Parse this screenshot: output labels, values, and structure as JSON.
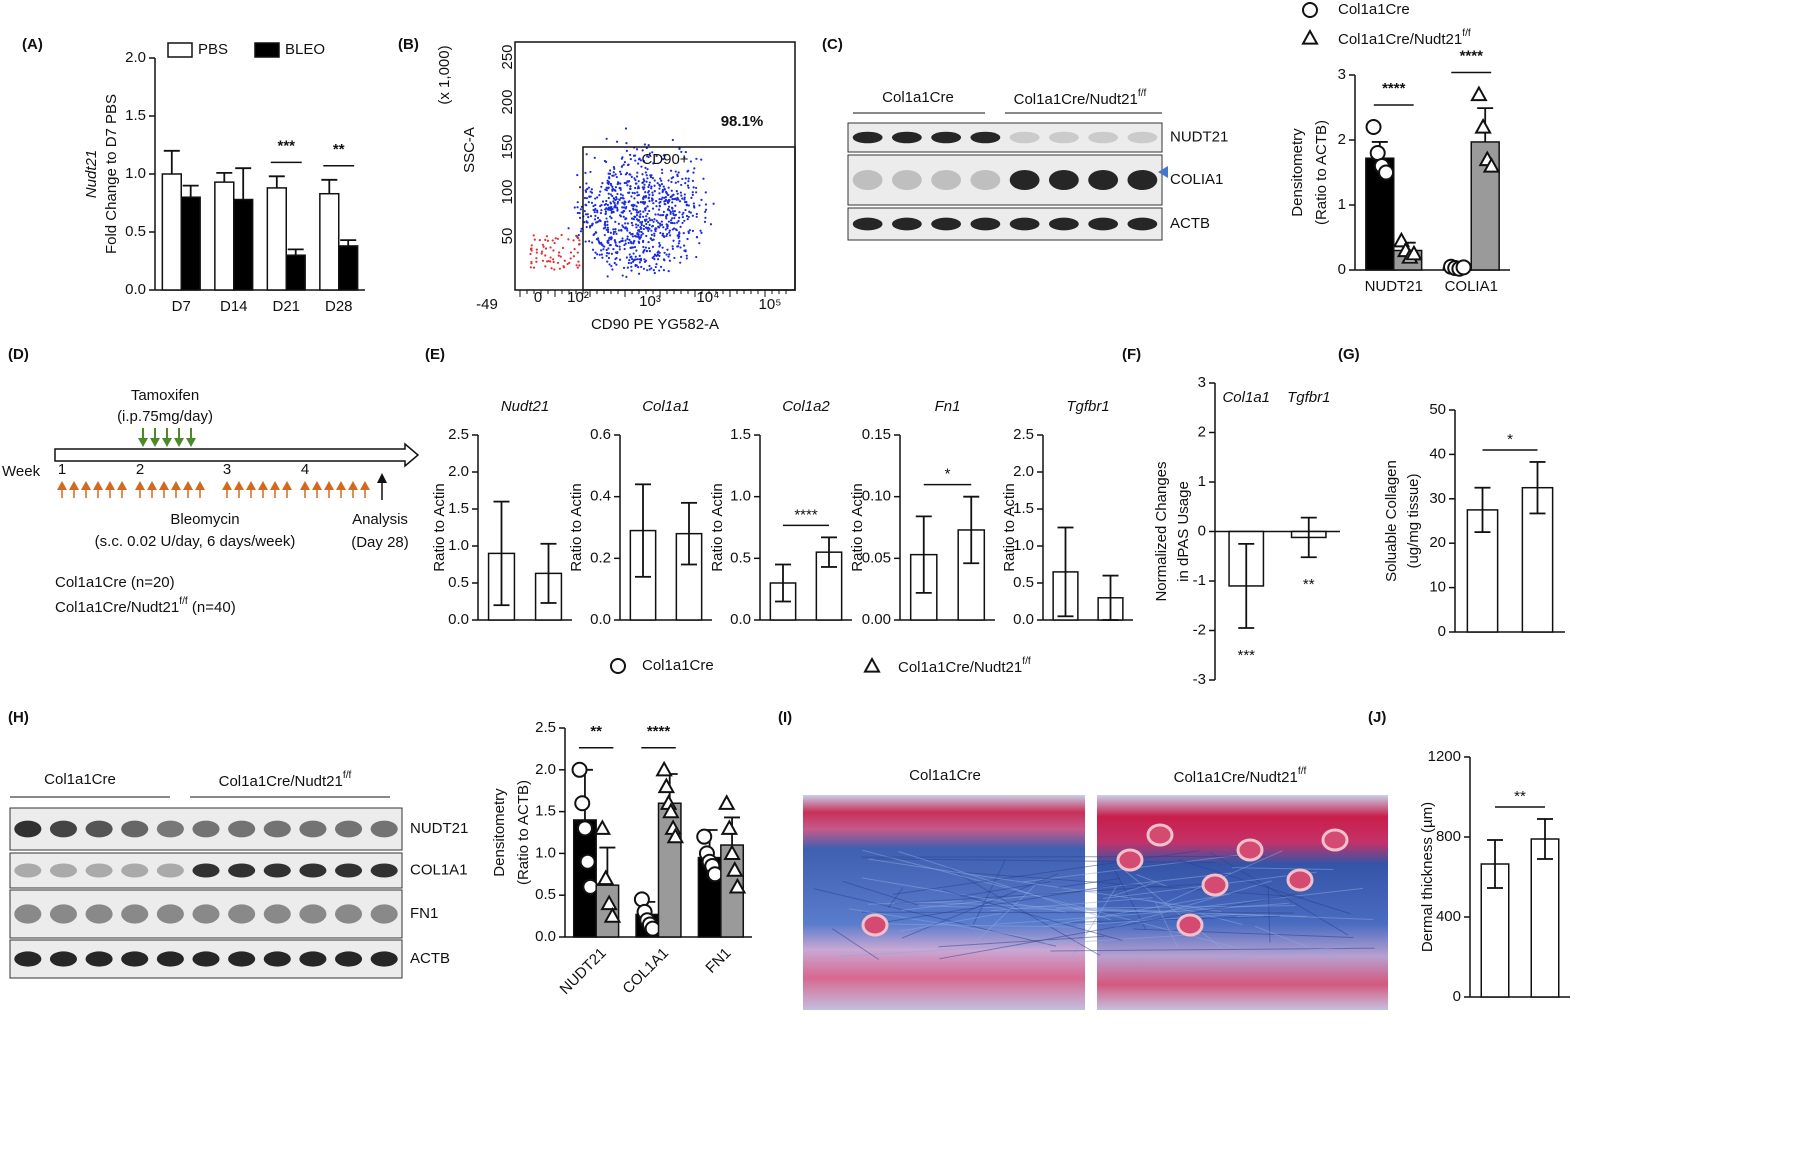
{
  "chart_data": [
    {
      "type": "bar",
      "ylabel": [
        "Nudt21",
        "Fold Change to D7 PBS"
      ],
      "categories": [
        "D7",
        "D14",
        "D21",
        "D28"
      ],
      "series": [
        {
          "name": "PBS",
          "color": "#ffffff",
          "values": [
            1.0,
            0.93,
            0.88,
            0.83
          ],
          "errors": [
            0.2,
            0.08,
            0.1,
            0.12
          ]
        },
        {
          "name": "BLEO",
          "color": "#000000",
          "values": [
            0.8,
            0.78,
            0.3,
            0.38
          ],
          "errors": [
            0.1,
            0.27,
            0.05,
            0.05
          ]
        }
      ],
      "significance": [
        null,
        null,
        "***",
        "**"
      ],
      "error_style": "up",
      "ylim": [
        0,
        2
      ],
      "yticks": [
        {
          "value": 0,
          "label": "0.0"
        },
        {
          "value": 0.5,
          "label": "0.5"
        },
        {
          "value": 1,
          "label": "1.0"
        },
        {
          "value": 1.5,
          "label": "1.5"
        },
        {
          "value": 2,
          "label": "2.0"
        }
      ]
    },
    {
      "type": "bar",
      "ylabel": [
        "Densitometry",
        "(Ratio to ACTB)"
      ],
      "categories": [
        "NUDT21",
        "COLIA1"
      ],
      "series": [
        {
          "name": "Col1a1Cre",
          "marker": "circle",
          "color": "#000000",
          "values": [
            1.72,
            0.03
          ],
          "errors": [
            0.25,
            0.02
          ],
          "points": [
            [
              2.2,
              1.8,
              1.6,
              1.5
            ],
            [
              0.05,
              0.03,
              0.02,
              0.04
            ]
          ]
        },
        {
          "name": "Col1a1Cre/Nudt21",
          "name_sup": "f/f",
          "marker": "triangle",
          "color": "#9a9a9a",
          "values": [
            0.3,
            1.97
          ],
          "errors": [
            0.12,
            0.52
          ],
          "points": [
            [
              0.45,
              0.3,
              0.2,
              0.25
            ],
            [
              2.7,
              2.2,
              1.7,
              1.6
            ]
          ]
        }
      ],
      "significance": [
        "****",
        "****"
      ],
      "error_style": "up",
      "ylim": [
        0,
        3
      ],
      "yticks": [
        0,
        1,
        2,
        3
      ]
    },
    {
      "type": "bar",
      "title": "Nudt21",
      "ylabel": [
        "Ratio to Actin"
      ],
      "categories": [
        null,
        null
      ],
      "color": "#ffffff",
      "values": [
        0.9,
        0.63
      ],
      "errors": [
        0.7,
        0.4
      ],
      "significance": null,
      "error_style": "both",
      "ylim": [
        0,
        2.5
      ],
      "yticks": [
        {
          "value": 0,
          "label": "0.0"
        },
        {
          "value": 0.5,
          "label": "0.5"
        },
        {
          "value": 1,
          "label": "1.0"
        },
        {
          "value": 1.5,
          "label": "1.5"
        },
        {
          "value": 2,
          "label": "2.0"
        },
        {
          "value": 2.5,
          "label": "2.5"
        }
      ]
    },
    {
      "type": "bar",
      "title": "Col1a1",
      "ylabel": [
        "Ratio to Actin"
      ],
      "categories": [
        null,
        null
      ],
      "color": "#ffffff",
      "values": [
        0.29,
        0.28
      ],
      "errors": [
        0.15,
        0.1
      ],
      "significance": null,
      "error_style": "both",
      "ylim": [
        0,
        0.6
      ],
      "yticks": [
        {
          "value": 0,
          "label": "0.0"
        },
        0.2,
        0.4,
        0.6
      ]
    },
    {
      "type": "bar",
      "title": "Col1a2",
      "ylabel": [
        "Ratio to Actin"
      ],
      "categories": [
        null,
        null
      ],
      "color": "#ffffff",
      "values": [
        0.3,
        0.55
      ],
      "errors": [
        0.15,
        0.12
      ],
      "significance": "****",
      "error_style": "both",
      "ylim": [
        0,
        1.5
      ],
      "yticks": [
        {
          "value": 0,
          "label": "0.0"
        },
        0.5,
        {
          "value": 1,
          "label": "1.0"
        },
        1.5
      ]
    },
    {
      "type": "bar",
      "title": "Fn1",
      "ylabel": [
        "Ratio to Actin"
      ],
      "categories": [
        null,
        null
      ],
      "color": "#ffffff",
      "values": [
        0.053,
        0.073
      ],
      "errors": [
        0.031,
        0.027
      ],
      "significance": "*",
      "error_style": "both",
      "ylim": [
        0,
        0.15
      ],
      "yticks": [
        {
          "value": 0,
          "label": "0.00"
        },
        0.05,
        {
          "value": 0.1,
          "label": "0.10"
        },
        0.15
      ]
    },
    {
      "type": "bar",
      "title": "Tgfbr1",
      "ylabel": [
        "Ratio to Actin"
      ],
      "categories": [
        null,
        null
      ],
      "color": "#ffffff",
      "values": [
        0.65,
        0.3
      ],
      "errors": [
        0.6,
        0.3
      ],
      "significance": null,
      "error_style": "both",
      "ylim": [
        0,
        2.5
      ],
      "yticks": [
        {
          "value": 0,
          "label": "0.0"
        },
        {
          "value": 0.5,
          "label": "0.5"
        },
        {
          "value": 1,
          "label": "1.0"
        },
        {
          "value": 1.5,
          "label": "1.5"
        },
        {
          "value": 2,
          "label": "2.0"
        },
        {
          "value": 2.5,
          "label": "2.5"
        }
      ]
    },
    {
      "type": "bar",
      "ylabel": [
        "Normalized Changes",
        "in dPAS Usage"
      ],
      "categories": [
        "Col1a1",
        "Tgfbr1"
      ],
      "color": "#ffffff",
      "values": [
        -1.1,
        -0.12
      ],
      "errors": [
        0.85,
        0.4
      ],
      "significance": [
        "***",
        "**"
      ],
      "error_style": "both",
      "ylim": [
        -3,
        3
      ],
      "yticks": [
        -3,
        -2,
        -1,
        0,
        1,
        2,
        3
      ]
    },
    {
      "type": "bar",
      "ylabel": [
        "Soluable Collagen",
        "(ug/mg tissue)"
      ],
      "categories": [
        null,
        null
      ],
      "color": "#ffffff",
      "values": [
        27.5,
        32.5
      ],
      "errors": [
        5,
        5.8
      ],
      "significance": "*",
      "error_style": "both",
      "ylim": [
        0,
        50
      ],
      "yticks": [
        0,
        10,
        20,
        30,
        40,
        50
      ]
    },
    {
      "type": "bar",
      "ylabel": [
        "Densitometry",
        "(Ratio to ACTB)"
      ],
      "categories": [
        "NUDT21",
        "COL1A1",
        "FN1"
      ],
      "series": [
        {
          "marker": "circle",
          "color": "#000000",
          "values": [
            1.4,
            0.27,
            0.95
          ],
          "errors": [
            0.6,
            0.15,
            0.33
          ],
          "points": [
            [
              2.0,
              1.6,
              1.3,
              0.9,
              0.6
            ],
            [
              0.45,
              0.3,
              0.2,
              0.15,
              0.1
            ],
            [
              1.2,
              1.0,
              0.9,
              0.85,
              0.75
            ]
          ]
        },
        {
          "marker": "triangle",
          "color": "#9a9a9a",
          "values": [
            0.62,
            1.6,
            1.1
          ],
          "errors": [
            0.45,
            0.35,
            0.33
          ],
          "points": [
            [
              1.3,
              0.7,
              0.4,
              0.25
            ],
            [
              2.0,
              1.8,
              1.6,
              1.5,
              1.3,
              1.2
            ],
            [
              1.6,
              1.3,
              1.0,
              0.8,
              0.6
            ]
          ]
        }
      ],
      "significance": [
        "**",
        "****",
        null
      ],
      "error_style": "up",
      "ylim": [
        0,
        2.5
      ],
      "yticks": [
        {
          "value": 0,
          "label": "0.0"
        },
        {
          "value": 0.5,
          "label": "0.5"
        },
        {
          "value": 1,
          "label": "1.0"
        },
        {
          "value": 1.5,
          "label": "1.5"
        },
        {
          "value": 2,
          "label": "2.0"
        },
        {
          "value": 2.5,
          "label": "2.5"
        }
      ]
    },
    {
      "type": "bar",
      "ylabel": [
        "Dermal thickness (µm)"
      ],
      "categories": [
        null,
        null
      ],
      "color": "#ffffff",
      "values": [
        665,
        790
      ],
      "errors": [
        120,
        100
      ],
      "significance": "**",
      "error_style": "both",
      "ylim": [
        0,
        1200
      ],
      "yticks": [
        0,
        400,
        800,
        1200
      ]
    }
  ],
  "panels": {
    "labels": [
      "(A)",
      "(B)",
      "(C)",
      "(D)",
      "(E)",
      "(F)",
      "(G)",
      "(H)",
      "(I)",
      "(J)"
    ],
    "b": {
      "y_label": "SSC-A",
      "y_unit": "(x 1,000)",
      "yticks": [
        "50",
        "100",
        "150",
        "200",
        "250"
      ],
      "xticks": [
        "-49",
        "0",
        "10²",
        "10³",
        "10⁴",
        "10⁵"
      ],
      "x_label": "CD90 PE YG582-A",
      "gate": "CD90+",
      "percent": "98.1%"
    },
    "c": {
      "groups": [
        "Col1a1Cre",
        "Col1a1Cre/Nudt21"
      ],
      "group_sup": "f/f",
      "rows": [
        "NUDT21",
        "COLIA1",
        "ACTB"
      ]
    },
    "d": {
      "tamoxifen": "Tamoxifen",
      "tamoxifen_dose": "(i.p.75mg/day)",
      "week": "Week",
      "weeks": [
        "1",
        "2",
        "3",
        "4"
      ],
      "bleomycin": "Bleomycin",
      "bleomycin_dose": "(s.c. 0.02 U/day, 6 days/week)",
      "analysis": "Analysis",
      "analysis_day": "(Day 28)",
      "group1": "Col1a1Cre (n=20)",
      "group2": [
        "Col1a1Cre/Nudt21",
        "f/f",
        " (n=40)"
      ]
    },
    "e_legend": [
      {
        "name": "Col1a1Cre"
      },
      {
        "name": "Col1a1Cre/Nudt21",
        "sup": "f/f"
      }
    ],
    "h": {
      "groups": [
        "Col1a1Cre",
        "Col1a1Cre/Nudt21"
      ],
      "group_sup": "f/f",
      "rows": [
        "NUDT21",
        "COL1A1",
        "FN1",
        "ACTB"
      ]
    },
    "i": {
      "groups": [
        "Col1a1Cre",
        "Col1a1Cre/Nudt21"
      ],
      "group_sup": "f/f"
    }
  }
}
